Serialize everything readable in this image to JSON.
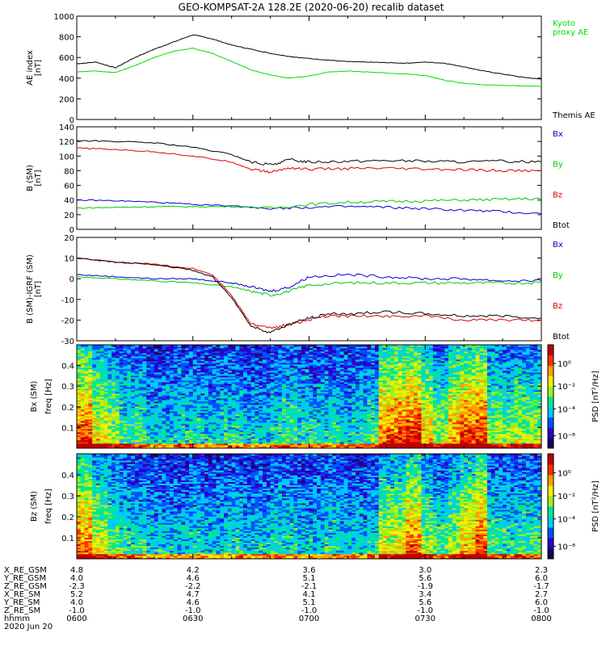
{
  "title": "GEO-KOMPSAT-2A 128.2E (2020-06-20) recalib dataset",
  "chart_data": [
    {
      "type": "line",
      "ylabel": [
        "AE index",
        "[nT]"
      ],
      "ylim": [
        0,
        1000
      ],
      "yticks": [
        "0",
        "200",
        "400",
        "600",
        "800",
        "1000"
      ],
      "legend": [
        {
          "name": "Kyoto proxy AE",
          "lines": [
            "Kyoto",
            "proxy AE"
          ],
          "color": "#00dd00"
        },
        {
          "name": "Themis AE",
          "lines": [
            "Themis AE"
          ],
          "color": "#000000"
        }
      ],
      "series": [
        {
          "name": "Themis AE",
          "color": "#000000",
          "x": [
            0,
            5,
            10,
            15,
            20,
            25,
            30,
            35,
            40,
            45,
            50,
            55,
            60,
            65,
            70,
            75,
            80,
            85,
            90,
            95,
            100,
            105,
            110,
            115,
            120
          ],
          "y": [
            540,
            555,
            500,
            600,
            680,
            750,
            820,
            780,
            720,
            680,
            640,
            610,
            590,
            575,
            560,
            555,
            550,
            545,
            555,
            545,
            510,
            470,
            440,
            410,
            390
          ]
        },
        {
          "name": "Kyoto proxy AE",
          "color": "#00dd00",
          "x": [
            0,
            5,
            10,
            15,
            20,
            25,
            30,
            35,
            40,
            45,
            50,
            55,
            60,
            65,
            70,
            75,
            80,
            85,
            90,
            95,
            100,
            105,
            110,
            115,
            120
          ],
          "y": [
            460,
            470,
            455,
            520,
            600,
            660,
            690,
            640,
            560,
            480,
            430,
            400,
            420,
            460,
            470,
            460,
            450,
            440,
            425,
            380,
            350,
            335,
            330,
            325,
            320
          ]
        }
      ]
    },
    {
      "type": "line",
      "ylabel": [
        "B (SM)",
        "[nT]"
      ],
      "ylim": [
        0,
        140
      ],
      "yticks": [
        "0",
        "20",
        "40",
        "60",
        "80",
        "100",
        "120",
        "140"
      ],
      "legend": [
        {
          "name": "Bx",
          "lines": [
            "Bx"
          ],
          "color": "#0000cc"
        },
        {
          "name": "By",
          "lines": [
            "By"
          ],
          "color": "#00cc00"
        },
        {
          "name": "Bz",
          "lines": [
            "Bz"
          ],
          "color": "#dd0000"
        },
        {
          "name": "Btot",
          "lines": [
            "Btot"
          ],
          "color": "#000000"
        }
      ],
      "series": [
        {
          "name": "Btot",
          "color": "#000000",
          "x": [
            0,
            10,
            20,
            30,
            40,
            45,
            50,
            55,
            60,
            70,
            80,
            90,
            100,
            110,
            120
          ],
          "y": [
            121,
            120,
            118,
            112,
            102,
            92,
            88,
            95,
            92,
            93,
            94,
            93,
            92,
            93,
            92
          ]
        },
        {
          "name": "Bz",
          "color": "#dd0000",
          "x": [
            0,
            10,
            20,
            30,
            40,
            45,
            50,
            55,
            60,
            70,
            80,
            90,
            100,
            110,
            120
          ],
          "y": [
            111,
            109,
            106,
            100,
            92,
            82,
            78,
            84,
            82,
            83,
            83,
            82,
            81,
            80,
            80
          ]
        },
        {
          "name": "Bx",
          "color": "#0000cc",
          "x": [
            0,
            10,
            20,
            30,
            40,
            50,
            60,
            70,
            80,
            90,
            100,
            110,
            120
          ],
          "y": [
            40,
            39,
            37,
            34,
            32,
            29,
            30,
            31,
            30,
            28,
            26,
            24,
            21
          ]
        },
        {
          "name": "By",
          "color": "#00cc00",
          "x": [
            0,
            10,
            20,
            30,
            40,
            50,
            60,
            70,
            80,
            90,
            100,
            110,
            120
          ],
          "y": [
            29,
            30,
            31,
            31,
            31,
            29,
            34,
            37,
            38,
            39,
            40,
            41,
            42
          ]
        }
      ]
    },
    {
      "type": "line",
      "ylabel": [
        "B (SM)-IGRF (SM)",
        "[nT]"
      ],
      "ylim": [
        -30,
        20
      ],
      "yticks": [
        "-30",
        "-20",
        "-10",
        "0",
        "10",
        "20"
      ],
      "legend": [
        {
          "name": "Bx",
          "lines": [
            "Bx"
          ],
          "color": "#0000cc"
        },
        {
          "name": "By",
          "lines": [
            "By"
          ],
          "color": "#00cc00"
        },
        {
          "name": "Bz",
          "lines": [
            "Bz"
          ],
          "color": "#dd0000"
        },
        {
          "name": "Btot",
          "lines": [
            "Btot"
          ],
          "color": "#000000"
        }
      ],
      "series": [
        {
          "name": "Bx",
          "color": "#0000cc",
          "x": [
            0,
            10,
            20,
            30,
            40,
            45,
            50,
            55,
            60,
            70,
            80,
            90,
            100,
            110,
            120
          ],
          "y": [
            2,
            1,
            0,
            0,
            -2,
            -4,
            -6,
            -4,
            1,
            2,
            1,
            0,
            0,
            -1,
            -1
          ]
        },
        {
          "name": "By",
          "color": "#00cc00",
          "x": [
            0,
            10,
            20,
            30,
            40,
            45,
            50,
            55,
            60,
            70,
            80,
            90,
            100,
            110,
            120
          ],
          "y": [
            1,
            0,
            -1,
            -2,
            -4,
            -6,
            -8,
            -6,
            -3,
            -2,
            -2,
            -2,
            -2,
            -2,
            -2
          ]
        },
        {
          "name": "Bz",
          "color": "#dd0000",
          "x": [
            0,
            10,
            20,
            30,
            35,
            40,
            45,
            50,
            55,
            60,
            65,
            70,
            80,
            90,
            100,
            110,
            120
          ],
          "y": [
            10,
            8,
            7,
            5,
            2,
            -8,
            -22,
            -24,
            -22,
            -20,
            -18,
            -18,
            -18,
            -18,
            -20,
            -20,
            -20
          ]
        },
        {
          "name": "Btot",
          "color": "#000000",
          "x": [
            0,
            10,
            20,
            30,
            35,
            40,
            45,
            50,
            55,
            60,
            65,
            70,
            80,
            90,
            100,
            110,
            120
          ],
          "y": [
            10,
            8,
            7,
            4,
            1,
            -9,
            -23,
            -26,
            -22,
            -19,
            -17,
            -17,
            -16,
            -17,
            -18,
            -18,
            -19
          ]
        }
      ]
    },
    {
      "type": "heatmap",
      "ylabel": [
        "Bx (SM)",
        "freq [Hz]"
      ],
      "ylim": [
        0,
        0.5
      ],
      "yticks": [
        "0.1",
        "0.2",
        "0.3",
        "0.4"
      ],
      "colorbar": {
        "label": "PSD [nT²/Hz]",
        "ticks": [
          "10⁰",
          "10⁻²",
          "10⁻⁴",
          "10⁻⁶"
        ],
        "scale": "log"
      },
      "colormap": [
        "#1a0060",
        "#2c00c8",
        "#0050ff",
        "#00c8ff",
        "#00e890",
        "#a0ee20",
        "#f0f000",
        "#ffa000",
        "#ff3000",
        "#c00000"
      ],
      "columns_with_high_power": [
        69,
        75,
        90,
        102
      ],
      "values": [
        [
          0.9,
          0.7,
          0.6,
          0.5,
          0.5,
          0.4,
          0.4,
          0.45,
          0.45,
          0.4,
          0.45,
          0.45,
          0.4,
          0.4,
          0.45,
          0.5,
          0.45,
          0.45,
          0.45,
          0.4,
          0.45,
          0.5,
          0.85,
          0.9,
          0.95,
          0.75,
          0.6,
          0.8,
          0.9,
          0.95,
          0.6,
          0.55,
          0.6,
          0.6
        ],
        [
          0.85,
          0.65,
          0.55,
          0.45,
          0.45,
          0.4,
          0.4,
          0.45,
          0.45,
          0.4,
          0.45,
          0.45,
          0.4,
          0.4,
          0.45,
          0.5,
          0.45,
          0.45,
          0.45,
          0.4,
          0.45,
          0.5,
          0.8,
          0.9,
          0.95,
          0.7,
          0.55,
          0.8,
          0.85,
          0.95,
          0.55,
          0.5,
          0.55,
          0.55
        ]
      ]
    },
    {
      "type": "heatmap",
      "ylabel": [
        "Bz (SM)",
        "freq [Hz]"
      ],
      "ylim": [
        0,
        0.5
      ],
      "yticks": [
        "0.1",
        "0.2",
        "0.3",
        "0.4"
      ],
      "colorbar": {
        "label": "PSD [nT²/Hz]",
        "ticks": [
          "10⁰",
          "10⁻²",
          "10⁻⁴",
          "10⁻⁶"
        ],
        "scale": "log"
      },
      "colormap": [
        "#1a0060",
        "#2c00c8",
        "#0050ff",
        "#00c8ff",
        "#00e890",
        "#a0ee20",
        "#f0f000",
        "#ffa000",
        "#ff3000",
        "#c00000"
      ],
      "columns_with_high_power": [
        75,
        102
      ],
      "values": [
        [
          0.85,
          0.65,
          0.55,
          0.45,
          0.45,
          0.4,
          0.4,
          0.4,
          0.45,
          0.4,
          0.4,
          0.45,
          0.4,
          0.4,
          0.45,
          0.45,
          0.4,
          0.4,
          0.45,
          0.4,
          0.4,
          0.45,
          0.65,
          0.7,
          0.85,
          0.6,
          0.5,
          0.6,
          0.75,
          0.9,
          0.5,
          0.45,
          0.5,
          0.5
        ],
        [
          0.8,
          0.6,
          0.5,
          0.4,
          0.4,
          0.35,
          0.35,
          0.4,
          0.4,
          0.35,
          0.4,
          0.4,
          0.35,
          0.35,
          0.4,
          0.45,
          0.4,
          0.4,
          0.4,
          0.35,
          0.4,
          0.45,
          0.6,
          0.65,
          0.85,
          0.55,
          0.45,
          0.55,
          0.7,
          0.85,
          0.45,
          0.4,
          0.45,
          0.45
        ]
      ]
    }
  ],
  "ephemeris": {
    "rows": [
      {
        "label": "X_RE_GSM",
        "values": [
          "4.8",
          "4.2",
          "3.6",
          "3.0",
          "2.3"
        ]
      },
      {
        "label": "Y_RE_GSM",
        "values": [
          "4.0",
          "4.6",
          "5.1",
          "5.6",
          "6.0"
        ]
      },
      {
        "label": "Z_RE_GSM",
        "values": [
          "-2.3",
          "-2.2",
          "-2.1",
          "-1.9",
          "-1.7"
        ]
      },
      {
        "label": "X_RE_SM",
        "values": [
          "5.2",
          "4.7",
          "4.1",
          "3.4",
          "2.7"
        ]
      },
      {
        "label": "Y_RE_SM",
        "values": [
          "4.0",
          "4.6",
          "5.1",
          "5.6",
          "6.0"
        ]
      },
      {
        "label": "Z_RE_SM",
        "values": [
          "-1.0",
          "-1.0",
          "-1.0",
          "-1.0",
          "-1.0"
        ]
      },
      {
        "label": "hhmm",
        "values": [
          "0600",
          "0630",
          "0700",
          "0730",
          "0800"
        ]
      }
    ],
    "date": "2020 Jun 20"
  }
}
